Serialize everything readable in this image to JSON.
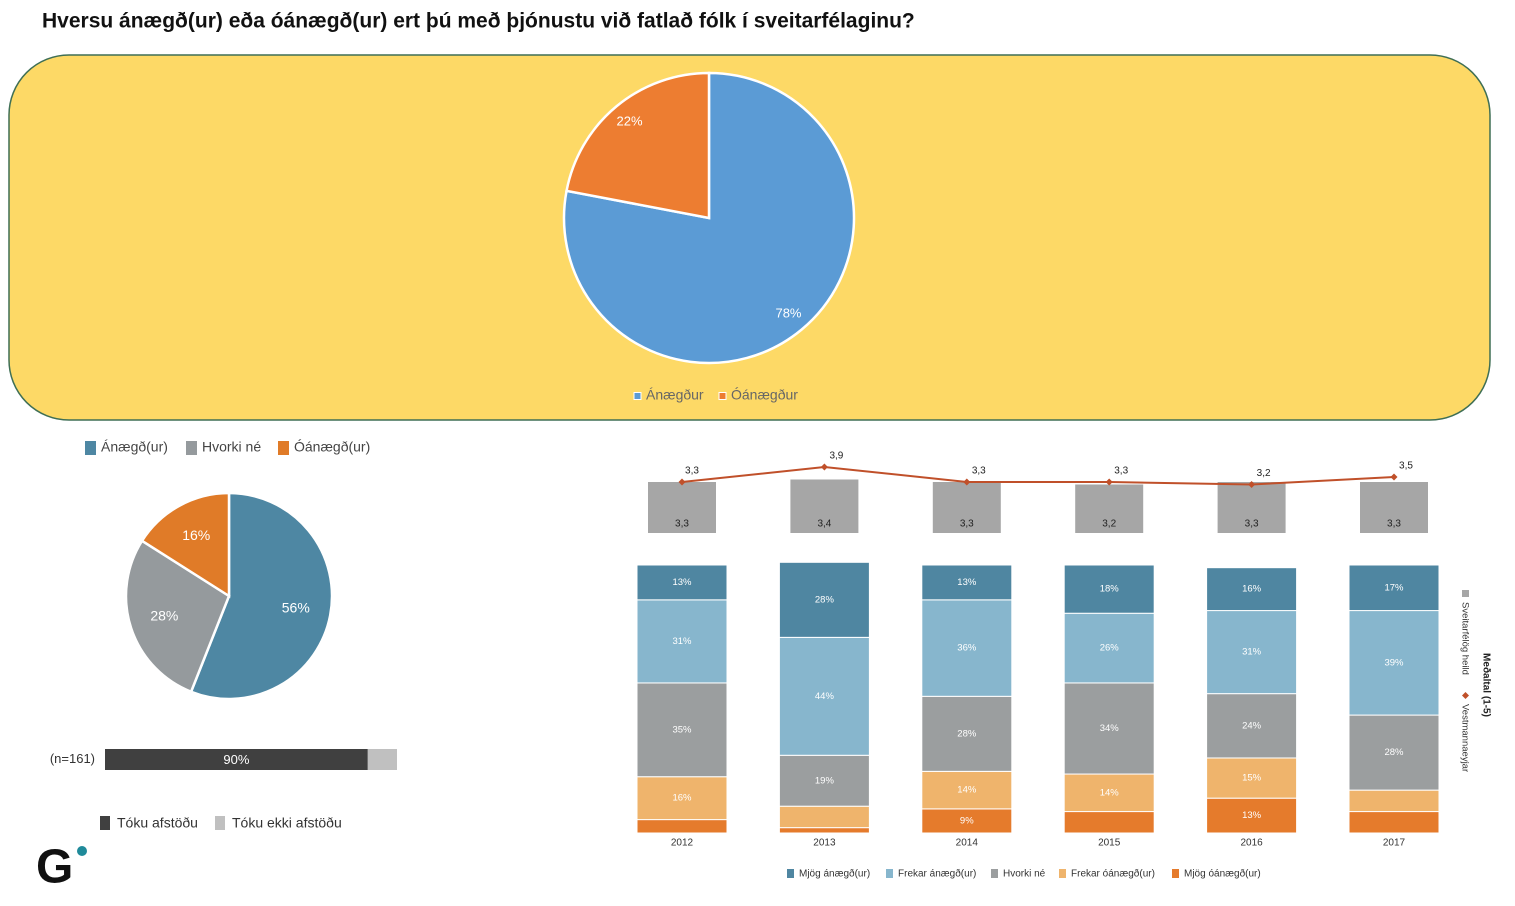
{
  "title": "Hversu ánægð(ur) eða óánægð(ur) ert þú með þjónustu við fatlað fólk í sveitarfélaginu?",
  "logo": "G",
  "chart_data": [
    {
      "type": "pie",
      "categories": [
        "Ánægður",
        "Óánægður"
      ],
      "values": [
        78,
        22
      ],
      "value_labels": [
        "78%",
        "22%"
      ],
      "colors": [
        "#5b9bd5",
        "#ed7d31"
      ]
    },
    {
      "type": "pie",
      "categories": [
        "Ánægð(ur)",
        "Hvorki né",
        "Óánægð(ur)"
      ],
      "values": [
        56,
        28,
        16
      ],
      "value_labels": [
        "56%",
        "28%",
        "16%"
      ],
      "colors": [
        "#4e87a3",
        "#959a9d",
        "#e07b28"
      ]
    },
    {
      "type": "hbar",
      "stacked": true,
      "categories": [
        "(n=161)"
      ],
      "xlim": [
        0,
        100
      ],
      "series": [
        {
          "name": "Tóku afstöðu",
          "color": "#404040",
          "values": [
            90
          ],
          "value_labels": [
            "90%"
          ]
        },
        {
          "name": "Tóku ekki afstöðu",
          "color": "#c0c0c0",
          "values": [
            10
          ]
        }
      ]
    },
    {
      "type": "bar",
      "stacked": true,
      "categories": [
        "2012",
        "2013",
        "2014",
        "2015",
        "2016",
        "2017"
      ],
      "ylim": [
        0,
        100
      ],
      "y2lim": [
        0,
        4
      ],
      "y2label": "Meðaltal (1-5)",
      "series": [
        {
          "name": "Mjög ánægð(ur)",
          "color": "#4f86a1",
          "values": [
            13,
            28,
            13,
            18,
            16,
            17
          ],
          "value_labels": [
            "13%",
            "28%",
            "13%",
            "18%",
            "16%",
            "17%"
          ]
        },
        {
          "name": "Frekar ánægð(ur)",
          "color": "#87b6cd",
          "values": [
            31,
            44,
            36,
            26,
            31,
            39
          ],
          "value_labels": [
            "31%",
            "44%",
            "36%",
            "26%",
            "31%",
            "39%"
          ]
        },
        {
          "name": "Hvorki né",
          "color": "#9b9e9f",
          "values": [
            35,
            19,
            28,
            34,
            24,
            28
          ],
          "value_labels": [
            "35%",
            "19%",
            "28%",
            "34%",
            "24%",
            "28%"
          ]
        },
        {
          "name": "Frekar óánægð(ur)",
          "color": "#efb46c",
          "values": [
            16,
            8,
            14,
            14,
            15,
            8
          ],
          "value_labels": [
            "16%",
            null,
            "14%",
            "14%",
            "15%",
            null
          ]
        },
        {
          "name": "Mjög óánægð(ur)",
          "color": "#e57b2c",
          "values": [
            5,
            2,
            9,
            8,
            13,
            8
          ],
          "value_labels": [
            null,
            null,
            "9%",
            null,
            "13%",
            null
          ]
        },
        {
          "name": "Sveitarfélög heild",
          "type": "bar",
          "axis": "y2",
          "color": "#a6a6a6",
          "values": [
            3.3,
            3.4,
            3.3,
            3.2,
            3.3,
            3.3
          ],
          "value_labels": [
            "3,3",
            "3,4",
            "3,3",
            "3,2",
            "3,3",
            "3,3"
          ]
        },
        {
          "name": "Vestmannaeyjar",
          "type": "line",
          "axis": "y2",
          "color": "#c0502a",
          "values": [
            3.3,
            3.9,
            3.3,
            3.3,
            3.2,
            3.5
          ],
          "value_labels": [
            "3,3",
            "3,9",
            "3,3",
            "3,3",
            "3,2",
            "3,5"
          ]
        }
      ]
    }
  ]
}
